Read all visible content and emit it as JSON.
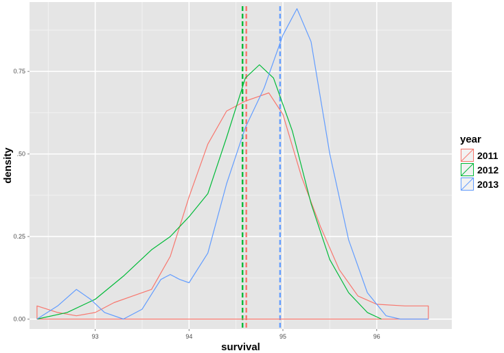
{
  "chart_data": {
    "type": "line",
    "xlabel": "survival",
    "ylabel": "density",
    "xlim": [
      92.3,
      96.8
    ],
    "ylim": [
      -0.03,
      0.96
    ],
    "x_ticks": [
      93,
      94,
      95,
      96
    ],
    "x_tick_labels": [
      "93",
      "94",
      "95",
      "96"
    ],
    "y_ticks": [
      0,
      0.25,
      0.5,
      0.75
    ],
    "y_tick_labels": [
      "0.00",
      "0.25",
      ".50",
      "0.75"
    ],
    "grid": true,
    "legend": {
      "title": "year",
      "position": "right"
    },
    "series": [
      {
        "name": "2011",
        "color": "#F8766D",
        "mean": 94.61,
        "points": [
          [
            92.38,
            0.0
          ],
          [
            92.38,
            0.04
          ],
          [
            92.6,
            0.02
          ],
          [
            92.8,
            0.01
          ],
          [
            93.0,
            0.02
          ],
          [
            93.2,
            0.05
          ],
          [
            93.4,
            0.07
          ],
          [
            93.6,
            0.09
          ],
          [
            93.8,
            0.19
          ],
          [
            94.0,
            0.37
          ],
          [
            94.2,
            0.53
          ],
          [
            94.4,
            0.63
          ],
          [
            94.6,
            0.66
          ],
          [
            94.85,
            0.685
          ],
          [
            95.0,
            0.62
          ],
          [
            95.2,
            0.43
          ],
          [
            95.4,
            0.28
          ],
          [
            95.6,
            0.15
          ],
          [
            95.8,
            0.07
          ],
          [
            96.0,
            0.045
          ],
          [
            96.3,
            0.04
          ],
          [
            96.55,
            0.04
          ],
          [
            96.55,
            0.0
          ],
          [
            92.38,
            0.0
          ]
        ]
      },
      {
        "name": "2012",
        "color": "#00BA38",
        "mean": 94.57,
        "points": [
          [
            92.38,
            0.0
          ],
          [
            92.7,
            0.02
          ],
          [
            93.0,
            0.06
          ],
          [
            93.3,
            0.13
          ],
          [
            93.6,
            0.21
          ],
          [
            93.8,
            0.25
          ],
          [
            94.0,
            0.31
          ],
          [
            94.2,
            0.38
          ],
          [
            94.4,
            0.55
          ],
          [
            94.6,
            0.73
          ],
          [
            94.75,
            0.77
          ],
          [
            94.9,
            0.73
          ],
          [
            95.1,
            0.57
          ],
          [
            95.3,
            0.35
          ],
          [
            95.5,
            0.18
          ],
          [
            95.7,
            0.08
          ],
          [
            95.9,
            0.02
          ],
          [
            96.05,
            0.0
          ]
        ]
      },
      {
        "name": "2013",
        "color": "#619CFF",
        "mean": 94.97,
        "points": [
          [
            92.38,
            0.0
          ],
          [
            92.6,
            0.04
          ],
          [
            92.8,
            0.09
          ],
          [
            92.95,
            0.06
          ],
          [
            93.1,
            0.02
          ],
          [
            93.3,
            0.0
          ],
          [
            93.5,
            0.03
          ],
          [
            93.7,
            0.12
          ],
          [
            93.8,
            0.135
          ],
          [
            93.9,
            0.12
          ],
          [
            94.0,
            0.11
          ],
          [
            94.2,
            0.2
          ],
          [
            94.4,
            0.41
          ],
          [
            94.6,
            0.58
          ],
          [
            94.8,
            0.7
          ],
          [
            95.0,
            0.86
          ],
          [
            95.15,
            0.94
          ],
          [
            95.3,
            0.84
          ],
          [
            95.5,
            0.5
          ],
          [
            95.7,
            0.24
          ],
          [
            95.9,
            0.08
          ],
          [
            96.1,
            0.01
          ],
          [
            96.25,
            0.0
          ],
          [
            96.55,
            0.0
          ]
        ]
      }
    ]
  }
}
